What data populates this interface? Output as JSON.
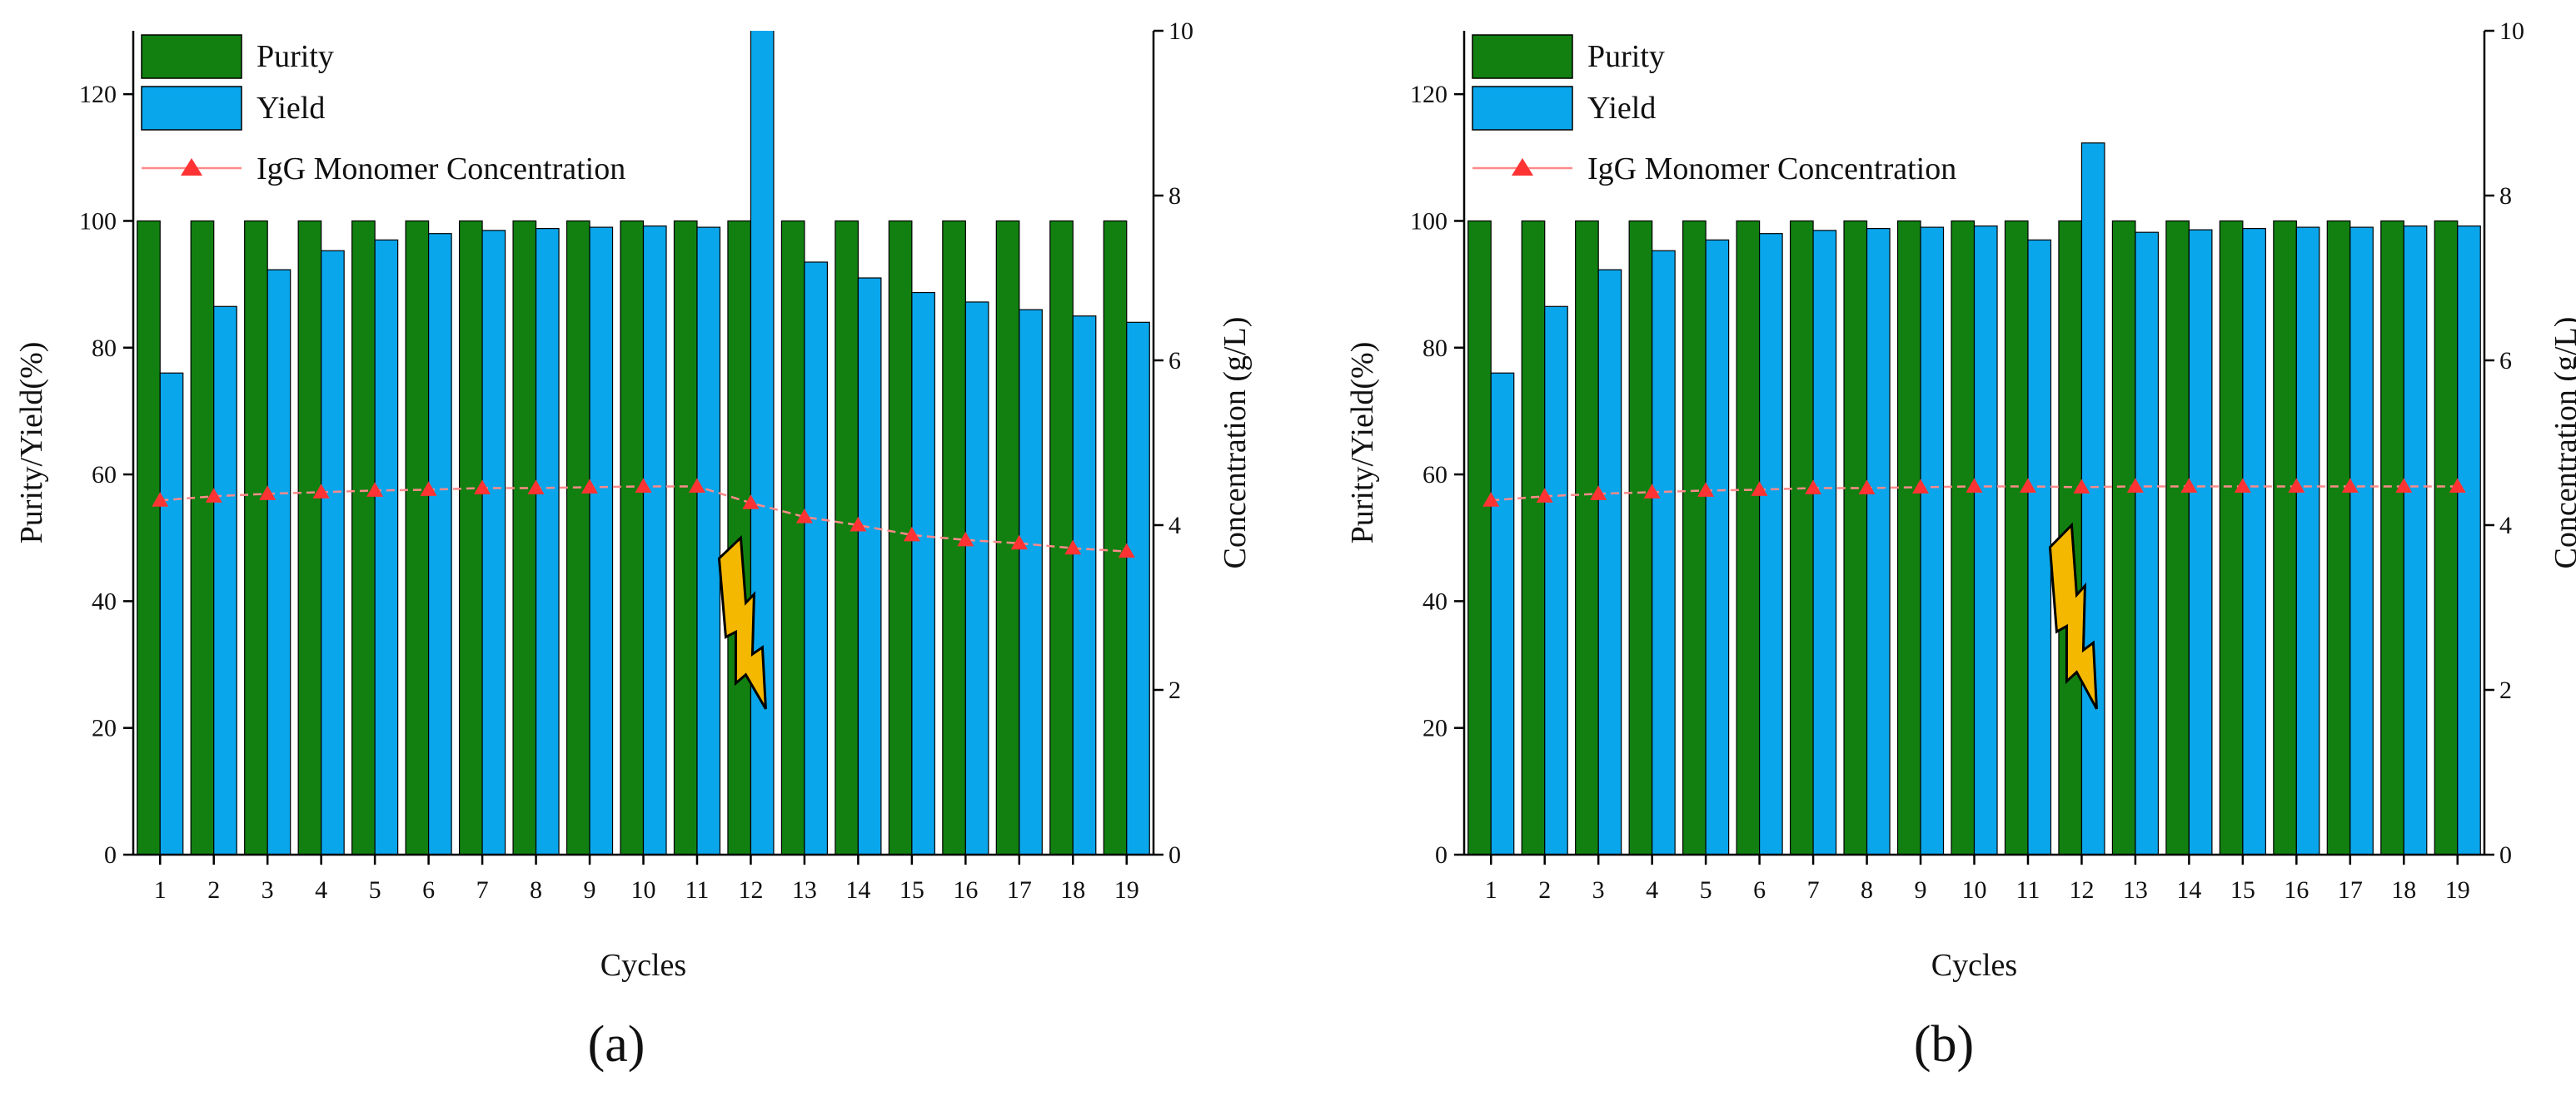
{
  "figure": {
    "panel_labels": [
      "(a)",
      "(b)"
    ]
  },
  "chart_data": [
    {
      "type": "bar",
      "panel": "(a)",
      "title": "",
      "xlabel": "Cycles",
      "ylabel": "Purity/Yield(%)",
      "y2label": "Concentration (g/L)",
      "categories": [
        "1",
        "2",
        "3",
        "4",
        "5",
        "6",
        "7",
        "8",
        "9",
        "10",
        "11",
        "12",
        "13",
        "14",
        "15",
        "16",
        "17",
        "18",
        "19"
      ],
      "ylim": [
        0,
        130
      ],
      "yticks": [
        0,
        20,
        40,
        60,
        80,
        100,
        120
      ],
      "y2lim": [
        0,
        10
      ],
      "y2ticks": [
        0,
        2,
        4,
        6,
        8,
        10
      ],
      "legend_position": "top-left",
      "series": [
        {
          "name": "Purity",
          "type": "bar",
          "axis": "left",
          "color": "#118011",
          "values": [
            100,
            100,
            100,
            100,
            100,
            100,
            100,
            100,
            100,
            100,
            100,
            100,
            100,
            100,
            100,
            100,
            100,
            100,
            100
          ]
        },
        {
          "name": "Yield",
          "type": "bar",
          "axis": "left",
          "color": "#0aa6ec",
          "values": [
            76,
            86.5,
            92.3,
            95.3,
            97,
            98,
            98.5,
            98.8,
            99,
            99.2,
            99,
            140,
            93.5,
            91,
            88.7,
            87.2,
            86,
            85,
            84
          ]
        },
        {
          "name": "IgG Monomer Concentration",
          "type": "line",
          "axis": "right",
          "color": "#ff3333",
          "line_color": "#ff8a8a",
          "values": [
            4.3,
            4.35,
            4.38,
            4.4,
            4.42,
            4.43,
            4.45,
            4.45,
            4.46,
            4.47,
            4.47,
            4.27,
            4.1,
            4.0,
            3.88,
            3.82,
            3.78,
            3.72,
            3.68
          ]
        }
      ],
      "annotations": [
        {
          "type": "lightning",
          "at_category": "12",
          "y_from": 50,
          "y_to": 23
        }
      ]
    },
    {
      "type": "bar",
      "panel": "(b)",
      "title": "",
      "xlabel": "Cycles",
      "ylabel": "Purity/Yield(%)",
      "y2label": "Concentration (g/L)",
      "categories": [
        "1",
        "2",
        "3",
        "4",
        "5",
        "6",
        "7",
        "8",
        "9",
        "10",
        "11",
        "12",
        "13",
        "14",
        "15",
        "16",
        "17",
        "18",
        "19"
      ],
      "ylim": [
        0,
        130
      ],
      "yticks": [
        0,
        20,
        40,
        60,
        80,
        100,
        120
      ],
      "y2lim": [
        0,
        10
      ],
      "y2ticks": [
        0,
        2,
        4,
        6,
        8,
        10
      ],
      "legend_position": "top-left",
      "series": [
        {
          "name": "Purity",
          "type": "bar",
          "axis": "left",
          "color": "#118011",
          "values": [
            100,
            100,
            100,
            100,
            100,
            100,
            100,
            100,
            100,
            100,
            100,
            100,
            100,
            100,
            100,
            100,
            100,
            100,
            100
          ]
        },
        {
          "name": "Yield",
          "type": "bar",
          "axis": "left",
          "color": "#0aa6ec",
          "values": [
            76,
            86.5,
            92.3,
            95.3,
            97,
            98,
            98.5,
            98.8,
            99,
            99.2,
            97,
            112.3,
            98.2,
            98.6,
            98.8,
            99,
            99,
            99.2,
            99.2
          ]
        },
        {
          "name": "IgG Monomer Concentration",
          "type": "line",
          "axis": "right",
          "color": "#ff3333",
          "line_color": "#ff8a8a",
          "values": [
            4.3,
            4.35,
            4.38,
            4.4,
            4.42,
            4.43,
            4.45,
            4.45,
            4.46,
            4.47,
            4.47,
            4.46,
            4.47,
            4.47,
            4.47,
            4.47,
            4.47,
            4.47,
            4.47
          ]
        }
      ],
      "annotations": [
        {
          "type": "lightning",
          "at_category": "12",
          "y_from": 52,
          "y_to": 23
        }
      ]
    }
  ]
}
